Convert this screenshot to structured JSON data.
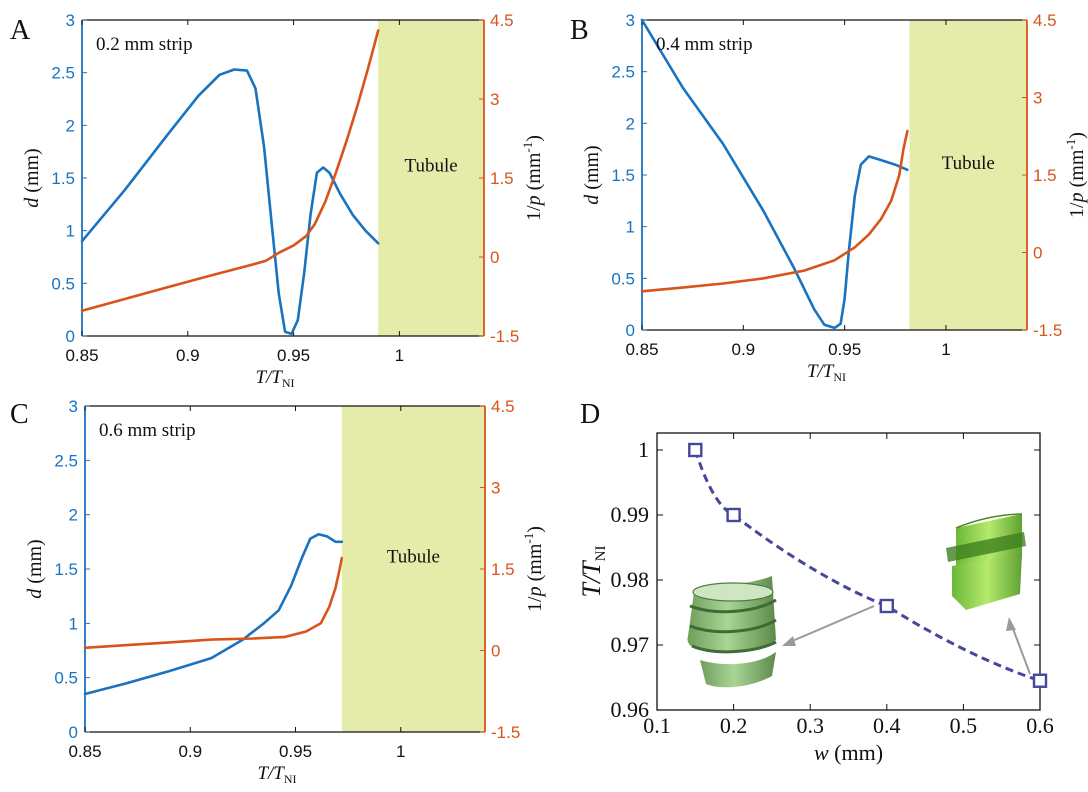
{
  "colors": {
    "d_line": "#1a73c0",
    "inv_p_line": "#d9541a",
    "tubule_fill": "#e5ecaa",
    "w_line": "#46479c"
  },
  "panels": {
    "A": {
      "letter": "A"
    },
    "B": {
      "letter": "B"
    },
    "C": {
      "letter": "C"
    },
    "D": {
      "letter": "D"
    }
  },
  "chart_data": [
    {
      "type": "line",
      "panel": "A",
      "annotation": "0.2 mm strip",
      "region_label": "Tubule",
      "xlabel": "T/T_NI",
      "ylabel_left": "d (mm)",
      "ylabel_right": "1/p (mm^-1)",
      "xlim": [
        0.85,
        1.04
      ],
      "ylim_left": [
        0,
        3
      ],
      "ylim_right": [
        -1.5,
        4.5
      ],
      "xticks": [
        "0.85",
        "0.9",
        "0.95",
        "1"
      ],
      "yticks_left": [
        "0",
        "0.5",
        "1",
        "1.5",
        "2",
        "2.5",
        "3"
      ],
      "yticks_right": [
        "-1.5",
        "0",
        "1.5",
        "3",
        "4.5"
      ],
      "tubule_start": 0.99,
      "series": [
        {
          "axis": "left",
          "x": [
            0.85,
            0.87,
            0.89,
            0.905,
            0.915,
            0.922,
            0.928,
            0.932,
            0.936,
            0.94,
            0.943,
            0.946,
            0.949,
            0.952,
            0.955,
            0.958,
            0.961,
            0.964,
            0.967,
            0.972,
            0.978,
            0.984,
            0.99
          ],
          "y": [
            0.9,
            1.38,
            1.9,
            2.28,
            2.48,
            2.53,
            2.52,
            2.35,
            1.8,
            1.0,
            0.4,
            0.04,
            0.02,
            0.15,
            0.6,
            1.15,
            1.55,
            1.6,
            1.55,
            1.35,
            1.15,
            1.0,
            0.88
          ]
        },
        {
          "axis": "right",
          "x": [
            0.85,
            0.87,
            0.89,
            0.91,
            0.93,
            0.937,
            0.943,
            0.95,
            0.956,
            0.96,
            0.965,
            0.97,
            0.975,
            0.98,
            0.985,
            0.99
          ],
          "y": [
            -1.02,
            -0.8,
            -0.58,
            -0.36,
            -0.15,
            -0.07,
            0.08,
            0.22,
            0.4,
            0.62,
            1.05,
            1.6,
            2.2,
            2.85,
            3.55,
            4.3
          ]
        }
      ]
    },
    {
      "type": "line",
      "panel": "B",
      "annotation": "0.4 mm strip",
      "region_label": "Tubule",
      "xlabel": "T/T_NI",
      "ylabel_left": "d (mm)",
      "ylabel_right": "1/p (mm^-1)",
      "xlim": [
        0.85,
        1.04
      ],
      "ylim_left": [
        0,
        3
      ],
      "ylim_right": [
        -1.5,
        4.5
      ],
      "xticks": [
        "0.85",
        "0.9",
        "0.95",
        "1"
      ],
      "yticks_left": [
        "0",
        "0.5",
        "1",
        "1.5",
        "2",
        "2.5",
        "3"
      ],
      "yticks_right": [
        "-1.5",
        "0",
        "1.5",
        "3",
        "4.5"
      ],
      "tubule_start": 0.982,
      "series": [
        {
          "axis": "left",
          "x": [
            0.85,
            0.87,
            0.89,
            0.91,
            0.925,
            0.935,
            0.94,
            0.945,
            0.948,
            0.95,
            0.952,
            0.955,
            0.958,
            0.962,
            0.967,
            0.975,
            0.981
          ],
          "y": [
            3.0,
            2.35,
            1.8,
            1.15,
            0.6,
            0.2,
            0.05,
            0.02,
            0.06,
            0.3,
            0.75,
            1.3,
            1.6,
            1.68,
            1.65,
            1.6,
            1.55
          ]
        },
        {
          "axis": "right",
          "x": [
            0.85,
            0.87,
            0.89,
            0.91,
            0.93,
            0.945,
            0.955,
            0.962,
            0.968,
            0.973,
            0.977,
            0.979,
            0.981
          ],
          "y": [
            -0.75,
            -0.68,
            -0.6,
            -0.5,
            -0.35,
            -0.15,
            0.1,
            0.35,
            0.65,
            1.0,
            1.5,
            2.0,
            2.35
          ]
        }
      ]
    },
    {
      "type": "line",
      "panel": "C",
      "annotation": "0.6 mm strip",
      "region_label": "Tubule",
      "xlabel": "T/T_NI",
      "ylabel_left": "d (mm)",
      "ylabel_right": "1/p (mm^-1)",
      "xlim": [
        0.85,
        1.04
      ],
      "ylim_left": [
        0,
        3
      ],
      "ylim_right": [
        -1.5,
        4.5
      ],
      "xticks": [
        "0.85",
        "0.9",
        "0.95",
        "1"
      ],
      "yticks_left": [
        "0",
        "0.5",
        "1",
        "1.5",
        "2",
        "2.5",
        "3"
      ],
      "yticks_right": [
        "-1.5",
        "0",
        "1.5",
        "3",
        "4.5"
      ],
      "tubule_start": 0.972,
      "series": [
        {
          "axis": "left",
          "x": [
            0.85,
            0.87,
            0.89,
            0.91,
            0.925,
            0.935,
            0.942,
            0.948,
            0.953,
            0.957,
            0.961,
            0.965,
            0.969,
            0.972
          ],
          "y": [
            0.35,
            0.45,
            0.56,
            0.68,
            0.85,
            1.0,
            1.12,
            1.35,
            1.6,
            1.78,
            1.82,
            1.8,
            1.75,
            1.75
          ]
        },
        {
          "axis": "right",
          "x": [
            0.85,
            0.87,
            0.89,
            0.91,
            0.93,
            0.945,
            0.955,
            0.962,
            0.966,
            0.969,
            0.971,
            0.972
          ],
          "y": [
            0.05,
            0.1,
            0.15,
            0.2,
            0.22,
            0.25,
            0.35,
            0.5,
            0.8,
            1.15,
            1.5,
            1.7
          ]
        }
      ]
    },
    {
      "type": "scatter",
      "panel": "D",
      "xlabel": "w (mm)",
      "ylabel": "T/T_NI",
      "xlim": [
        0.1,
        0.6
      ],
      "ylim": [
        0.96,
        1.0
      ],
      "xticks": [
        "0.1",
        "0.2",
        "0.3",
        "0.4",
        "0.5",
        "0.6"
      ],
      "yticks": [
        "0.96",
        "0.97",
        "0.98",
        "0.99",
        "1"
      ],
      "points": {
        "x": [
          0.15,
          0.2,
          0.4,
          0.6
        ],
        "y": [
          1.0,
          0.99,
          0.976,
          0.9645
        ]
      }
    }
  ]
}
